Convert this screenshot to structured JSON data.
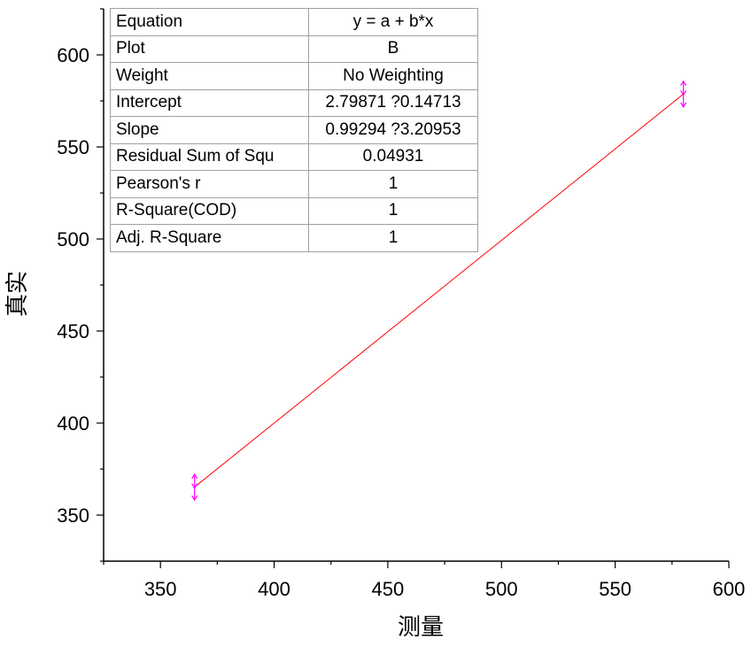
{
  "chart_data": {
    "type": "line",
    "title": "",
    "xlabel": "测量",
    "ylabel": "真实",
    "xlim": [
      325,
      600
    ],
    "ylim": [
      325,
      625
    ],
    "x_ticks": [
      350,
      400,
      450,
      500,
      550,
      600
    ],
    "y_ticks": [
      350,
      400,
      450,
      500,
      550,
      600
    ],
    "series": [
      {
        "x": [
          365,
          580
        ],
        "y": [
          365.23,
          578.71
        ],
        "color": "#ff0000"
      }
    ],
    "error_bars": [
      {
        "x": 365,
        "y": 365.2,
        "error": 7
      },
      {
        "x": 580,
        "y": 578.7,
        "error": 7
      }
    ],
    "error_bar_color": "#ff00ff",
    "stats_table": [
      {
        "name": "Equation",
        "value": "y = a + b*x"
      },
      {
        "name": "Plot",
        "value": "B"
      },
      {
        "name": "Weight",
        "value": "No Weighting"
      },
      {
        "name": "Intercept",
        "value": "2.79871 ?0.14713"
      },
      {
        "name": "Slope",
        "value": "0.99294 ?3.20953"
      },
      {
        "name": "Residual Sum of Squ",
        "value": "0.04931"
      },
      {
        "name": "Pearson's r",
        "value": "1"
      },
      {
        "name": "R-Square(COD)",
        "value": "1"
      },
      {
        "name": "Adj. R-Square",
        "value": "1"
      }
    ]
  }
}
